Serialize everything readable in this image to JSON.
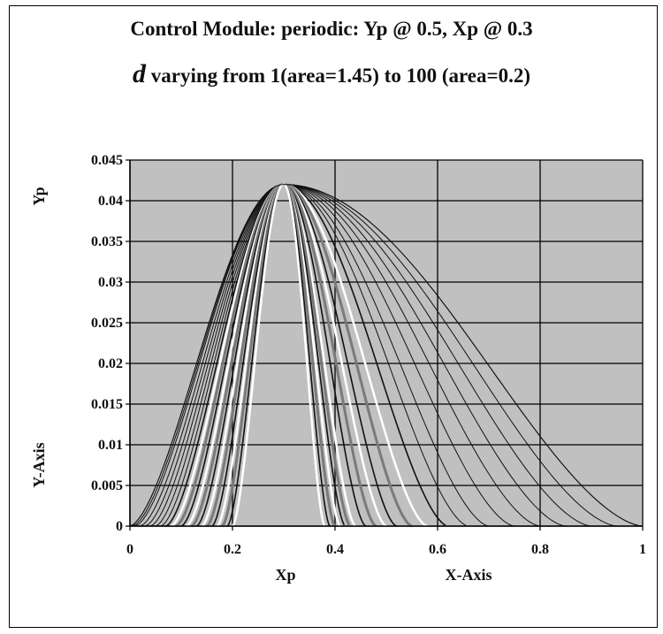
{
  "chart_data": {
    "type": "line",
    "title_line1": "Control Module: periodic: Yp @ 0.5, Xp @ 0.3",
    "title_line2_symbol": "d",
    "title_line2_rest": " varying from 1(area=1.45) to 100 (area=0.2)",
    "xlabel": "Xp",
    "xlabel2": "X-Axis",
    "ylabel": "Yp",
    "ylabel2": "Y-Axis",
    "xlim": [
      0,
      1
    ],
    "ylim": [
      0,
      0.045
    ],
    "x_ticks": [
      "0",
      "0.2",
      "0.4",
      "0.6",
      "0.8",
      "1"
    ],
    "y_ticks": [
      "0",
      "0.005",
      "0.01",
      "0.015",
      "0.02",
      "0.025",
      "0.03",
      "0.035",
      "0.04",
      "0.045"
    ],
    "grid": true,
    "peak": {
      "x": 0.3,
      "y": 0.042
    },
    "family": {
      "description_d_range": [
        1,
        100
      ],
      "note": "family of curves, each rising from 0 at the left to peak at x=0.3 and falling to 0; widest for d=1, narrowest for d=100",
      "curves_left_extent": [
        0.0,
        0.005,
        0.01,
        0.02,
        0.03,
        0.04,
        0.05,
        0.06,
        0.07,
        0.08,
        0.09,
        0.1,
        0.11,
        0.12,
        0.13,
        0.14,
        0.15,
        0.16,
        0.17,
        0.18,
        0.19,
        0.2
      ],
      "curves_right_extent": [
        1.0,
        0.95,
        0.9,
        0.85,
        0.8,
        0.75,
        0.7,
        0.66,
        0.62,
        0.58,
        0.55,
        0.52,
        0.5,
        0.48,
        0.46,
        0.44,
        0.43,
        0.42,
        0.41,
        0.4,
        0.39,
        0.38
      ]
    }
  },
  "colors": {
    "plot_bg": "#c0c0c0",
    "grid": "#000000",
    "curves_dark": "#111111",
    "curves_light": "#ffffff",
    "curves_mid": "#7a7a7a"
  }
}
